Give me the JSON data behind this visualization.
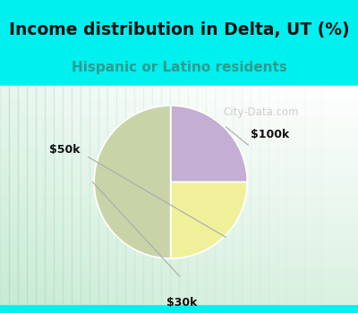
{
  "title": "Income distribution in Delta, UT (%)",
  "subtitle": "Hispanic or Latino residents",
  "slices": [
    {
      "label": "$100k",
      "value": 25,
      "color": "#c4aed4"
    },
    {
      "label": "$50k",
      "value": 25,
      "color": "#f0f09a"
    },
    {
      "label": "$30k",
      "value": 50,
      "color": "#c8d4a8"
    }
  ],
  "title_fontsize": 13.5,
  "subtitle_fontsize": 11,
  "title_color": "#111111",
  "subtitle_color": "#2a9d8f",
  "cyan_color": "#00f0f0",
  "watermark": "City-Data.com",
  "label_fontsize": 9,
  "label_color": "#111111",
  "leader_color": "#aaaaaa"
}
